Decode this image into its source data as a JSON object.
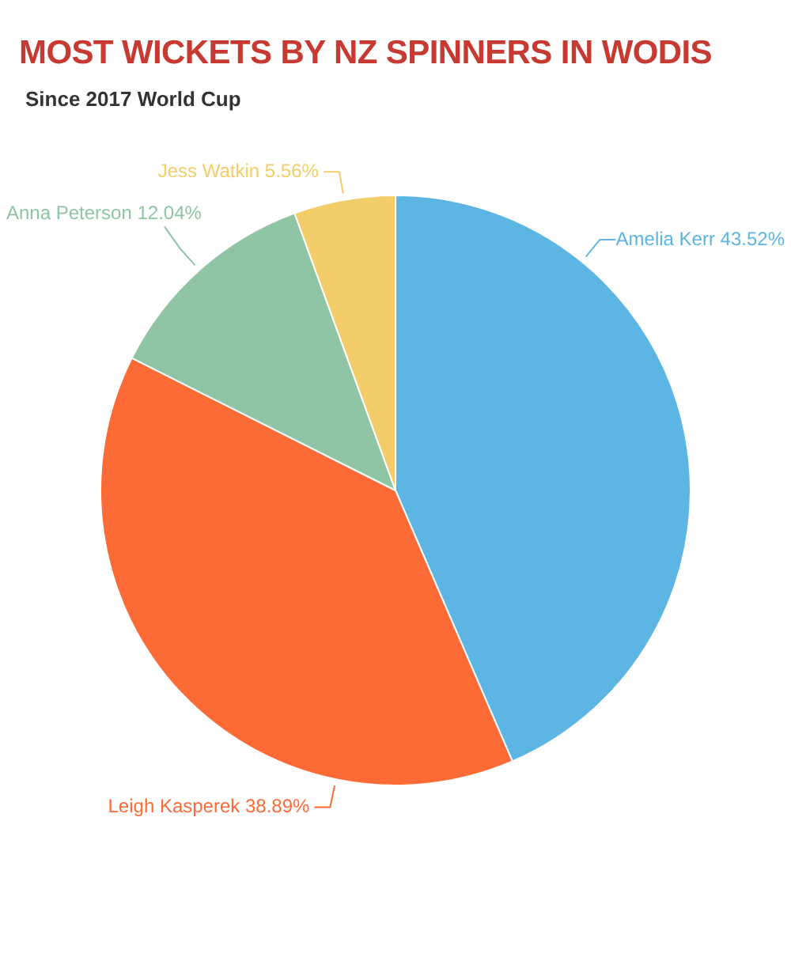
{
  "chart_data": {
    "type": "pie",
    "title": "MOST WICKETS BY NZ SPINNERS IN WODIS",
    "subtitle": "Since 2017 World Cup",
    "categories": [
      "Amelia Kerr",
      "Leigh Kasperek",
      "Anna Peterson",
      "Jess Watkin"
    ],
    "values": [
      43.52,
      38.89,
      12.04,
      5.56
    ],
    "value_labels": [
      "43.52%",
      "38.89%",
      "12.04%",
      "5.56%"
    ],
    "colors": [
      "#5db5e3",
      "#fc6a36",
      "#8fc5a5",
      "#f2cd6a"
    ],
    "legend": false
  }
}
